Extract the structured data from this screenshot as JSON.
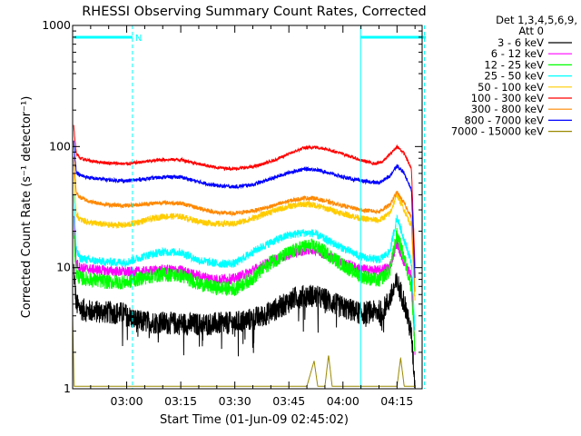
{
  "chart_data": {
    "type": "line",
    "title": "RHESSI Observing Summary Count Rates, Corrected",
    "xlabel": "Start Time (01-Jun-09 02:45:02)",
    "ylabel": "Corrected Count Rate (s⁻¹ detector⁻¹)",
    "y_scale": "log",
    "ylim": [
      1,
      1000
    ],
    "y_ticks": [
      {
        "value": 1,
        "label": "1"
      },
      {
        "value": 10,
        "label": "10"
      },
      {
        "value": 100,
        "label": "100"
      },
      {
        "value": 1000,
        "label": "1000"
      }
    ],
    "xlim": [
      "02:45:02",
      "04:22:00"
    ],
    "x_ticks": [
      {
        "t": 15,
        "label": "03:00"
      },
      {
        "t": 30,
        "label": "03:15"
      },
      {
        "t": 45,
        "label": "03:30"
      },
      {
        "t": 60,
        "label": "03:45"
      },
      {
        "t": 75,
        "label": "04:00"
      },
      {
        "t": 90,
        "label": "04:15"
      }
    ],
    "legend": {
      "header": [
        "Det 1,3,4,5,6,9,",
        "Att 0"
      ],
      "placement": "right"
    },
    "annotations": {
      "night_marker": "N",
      "markers": [
        {
          "t": 16.6,
          "style": "dashed"
        },
        {
          "t": 79.9,
          "style": "solid"
        },
        {
          "t": 97.6,
          "style": "dashed"
        }
      ],
      "bars": [
        {
          "t0": 0.4,
          "t1": 16.6
        },
        {
          "t0": 79.9,
          "t1": 98.0
        }
      ]
    },
    "series": [
      {
        "name": "3 - 6 keV",
        "color": "#000000",
        "points": [
          [
            0.3,
            10
          ],
          [
            1,
            5
          ],
          [
            2,
            4.6
          ],
          [
            4,
            4.4
          ],
          [
            8,
            4.3
          ],
          [
            14,
            4.2
          ],
          [
            18,
            3.6
          ],
          [
            25,
            3.5
          ],
          [
            35,
            3.4
          ],
          [
            45,
            3.5
          ],
          [
            52,
            3.9
          ],
          [
            58,
            4.8
          ],
          [
            62,
            5.7
          ],
          [
            66,
            5.9
          ],
          [
            70,
            5.5
          ],
          [
            74,
            4.8
          ],
          [
            80,
            4.2
          ],
          [
            86,
            4.4
          ],
          [
            88,
            5.5
          ],
          [
            90,
            7.6
          ],
          [
            92,
            5.2
          ],
          [
            94,
            2.8
          ],
          [
            95,
            1.05
          ]
        ]
      },
      {
        "name": "6 - 12 keV",
        "color": "#ff00ff",
        "points": [
          [
            0.3,
            28
          ],
          [
            1,
            11
          ],
          [
            2,
            10
          ],
          [
            5,
            9.7
          ],
          [
            10,
            9.4
          ],
          [
            15,
            9.2
          ],
          [
            20,
            9.3
          ],
          [
            25,
            9.6
          ],
          [
            30,
            9.5
          ],
          [
            35,
            8.5
          ],
          [
            40,
            8
          ],
          [
            45,
            8.1
          ],
          [
            50,
            9.5
          ],
          [
            55,
            11.3
          ],
          [
            60,
            12.8
          ],
          [
            64,
            13.9
          ],
          [
            67,
            14.2
          ],
          [
            70,
            12.9
          ],
          [
            75,
            10.9
          ],
          [
            80,
            9.7
          ],
          [
            85,
            9.4
          ],
          [
            88,
            10.2
          ],
          [
            90,
            16
          ],
          [
            92,
            11
          ],
          [
            94,
            8.5
          ],
          [
            95,
            2
          ]
        ]
      },
      {
        "name": "12 - 25 keV",
        "color": "#00ff00",
        "points": [
          [
            0.3,
            20
          ],
          [
            1,
            9
          ],
          [
            2,
            8.2
          ],
          [
            5,
            8
          ],
          [
            10,
            7.6
          ],
          [
            15,
            7.6
          ],
          [
            20,
            8.3
          ],
          [
            25,
            8.8
          ],
          [
            30,
            8.6
          ],
          [
            35,
            7.4
          ],
          [
            40,
            6.8
          ],
          [
            45,
            6.7
          ],
          [
            50,
            8.2
          ],
          [
            55,
            11.1
          ],
          [
            60,
            13.2
          ],
          [
            64,
            14.9
          ],
          [
            67,
            15.1
          ],
          [
            70,
            13.5
          ],
          [
            75,
            10.5
          ],
          [
            80,
            8.5
          ],
          [
            85,
            7.8
          ],
          [
            88,
            9.5
          ],
          [
            90,
            19
          ],
          [
            92,
            12
          ],
          [
            94,
            7
          ],
          [
            95,
            2
          ]
        ]
      },
      {
        "name": "25 - 50 keV",
        "color": "#00ffff",
        "points": [
          [
            0.3,
            40
          ],
          [
            1,
            14
          ],
          [
            2,
            12
          ],
          [
            5,
            11.5
          ],
          [
            10,
            11.1
          ],
          [
            15,
            11.1
          ],
          [
            20,
            12.5
          ],
          [
            25,
            13.5
          ],
          [
            30,
            13.4
          ],
          [
            35,
            11.5
          ],
          [
            40,
            10.8
          ],
          [
            45,
            10.8
          ],
          [
            50,
            13.5
          ],
          [
            55,
            16.2
          ],
          [
            60,
            18.6
          ],
          [
            64,
            19.4
          ],
          [
            67,
            19.2
          ],
          [
            70,
            17.2
          ],
          [
            75,
            14.5
          ],
          [
            80,
            12.3
          ],
          [
            85,
            11.6
          ],
          [
            88,
            13.5
          ],
          [
            90,
            26
          ],
          [
            92,
            17
          ],
          [
            94,
            11
          ],
          [
            95,
            3
          ]
        ]
      },
      {
        "name": "50 - 100 keV",
        "color": "#ffcc00",
        "points": [
          [
            0.3,
            60
          ],
          [
            1,
            28
          ],
          [
            2,
            25
          ],
          [
            5,
            23.5
          ],
          [
            10,
            22.5
          ],
          [
            15,
            22.5
          ],
          [
            20,
            24.5
          ],
          [
            25,
            26.5
          ],
          [
            30,
            26.5
          ],
          [
            35,
            24
          ],
          [
            40,
            23
          ],
          [
            45,
            23
          ],
          [
            50,
            25.5
          ],
          [
            55,
            29
          ],
          [
            60,
            32
          ],
          [
            64,
            33.5
          ],
          [
            67,
            33
          ],
          [
            70,
            31
          ],
          [
            75,
            28
          ],
          [
            80,
            25.5
          ],
          [
            85,
            24.5
          ],
          [
            88,
            28
          ],
          [
            90,
            40
          ],
          [
            92,
            30
          ],
          [
            94,
            22
          ],
          [
            95,
            5
          ]
        ]
      },
      {
        "name": "100 - 300 keV",
        "color": "#ff0000",
        "points": [
          [
            0.3,
            150
          ],
          [
            1,
            88
          ],
          [
            2,
            80
          ],
          [
            5,
            76
          ],
          [
            10,
            73
          ],
          [
            15,
            72
          ],
          [
            20,
            75
          ],
          [
            25,
            78
          ],
          [
            30,
            78
          ],
          [
            35,
            72
          ],
          [
            40,
            67
          ],
          [
            45,
            65.5
          ],
          [
            50,
            68
          ],
          [
            55,
            75
          ],
          [
            60,
            87
          ],
          [
            64,
            97
          ],
          [
            67,
            99
          ],
          [
            70,
            96
          ],
          [
            75,
            87
          ],
          [
            80,
            77
          ],
          [
            84,
            72
          ],
          [
            86,
            75
          ],
          [
            88,
            86
          ],
          [
            90,
            100
          ],
          [
            92,
            88
          ],
          [
            94,
            65
          ],
          [
            95,
            10
          ]
        ]
      },
      {
        "name": "300 - 800 keV",
        "color": "#ff8800",
        "points": [
          [
            0.3,
            80
          ],
          [
            1,
            42
          ],
          [
            2,
            38
          ],
          [
            5,
            35
          ],
          [
            10,
            33
          ],
          [
            15,
            32.5
          ],
          [
            20,
            33.5
          ],
          [
            25,
            34.5
          ],
          [
            30,
            34
          ],
          [
            35,
            31
          ],
          [
            40,
            28.5
          ],
          [
            45,
            28
          ],
          [
            50,
            29.5
          ],
          [
            55,
            32
          ],
          [
            60,
            35.5
          ],
          [
            64,
            37.5
          ],
          [
            67,
            37.5
          ],
          [
            70,
            35.5
          ],
          [
            75,
            32.5
          ],
          [
            80,
            30
          ],
          [
            85,
            29
          ],
          [
            88,
            33
          ],
          [
            90,
            42
          ],
          [
            92,
            34
          ],
          [
            94,
            26
          ],
          [
            95,
            6
          ]
        ]
      },
      {
        "name": "800 - 7000 keV",
        "color": "#0000ff",
        "points": [
          [
            0.3,
            110
          ],
          [
            1,
            62
          ],
          [
            2,
            58
          ],
          [
            5,
            55
          ],
          [
            10,
            53
          ],
          [
            15,
            52
          ],
          [
            20,
            54
          ],
          [
            25,
            56
          ],
          [
            30,
            56
          ],
          [
            35,
            51
          ],
          [
            40,
            47.5
          ],
          [
            45,
            46.5
          ],
          [
            50,
            48.5
          ],
          [
            55,
            54
          ],
          [
            60,
            61
          ],
          [
            64,
            65
          ],
          [
            67,
            65
          ],
          [
            70,
            62
          ],
          [
            75,
            56
          ],
          [
            80,
            52
          ],
          [
            85,
            50
          ],
          [
            88,
            57
          ],
          [
            90,
            70
          ],
          [
            92,
            60
          ],
          [
            94,
            44
          ],
          [
            95,
            8
          ]
        ]
      },
      {
        "name": "7000 - 15000 keV",
        "color": "#998800",
        "points": [
          [
            0,
            4
          ],
          [
            0.4,
            1.05
          ],
          [
            20,
            1.05
          ],
          [
            45,
            1.05
          ],
          [
            65,
            1.05
          ],
          [
            67,
            1.7
          ],
          [
            68,
            1.05
          ],
          [
            70,
            1.05
          ],
          [
            71,
            1.9
          ],
          [
            72,
            1.05
          ],
          [
            90,
            1.05
          ],
          [
            91,
            1.8
          ],
          [
            92,
            1.05
          ],
          [
            95,
            1.05
          ]
        ]
      }
    ]
  }
}
